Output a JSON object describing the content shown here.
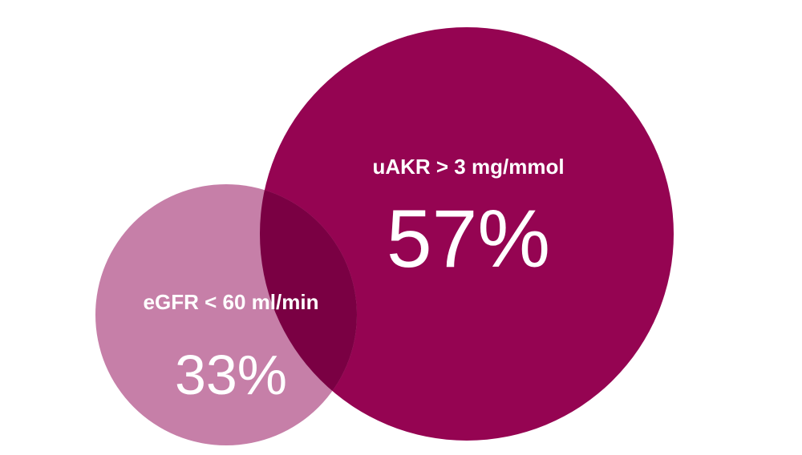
{
  "circles": {
    "egfr": {
      "label": "eGFR < 60 ml/min",
      "value": "33%",
      "color": "#c67fa8"
    },
    "uakr": {
      "label": "uAKR > 3 mg/mmol",
      "value": "57%",
      "color": "#950452"
    },
    "overlap_color": "#7a0043",
    "text_color": "#ffffff"
  }
}
